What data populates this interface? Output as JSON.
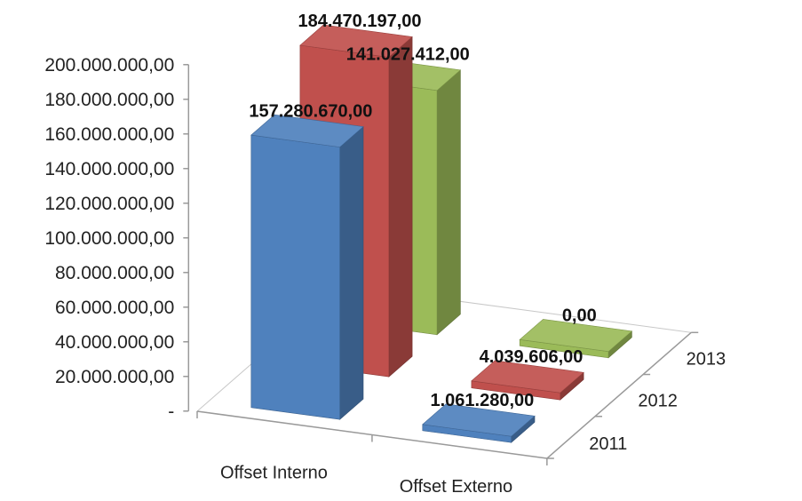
{
  "chart_data": {
    "type": "bar",
    "subtype": "3d-clustered-column",
    "categories": [
      "Offset Interno",
      "Offset Externo"
    ],
    "series": [
      {
        "name": "2011",
        "color": "#4F81BD",
        "values": [
          157280670.0,
          1061280.0
        ],
        "labels": [
          "157.280.670,00",
          "1.061.280,00"
        ]
      },
      {
        "name": "2012",
        "color": "#C0504D",
        "values": [
          184470197.0,
          4039606.0
        ],
        "labels": [
          "184.470.197,00",
          "4.039.606,00"
        ]
      },
      {
        "name": "2013",
        "color": "#9BBB59",
        "values": [
          141027412.0,
          0.0
        ],
        "labels": [
          "141.027.412,00",
          "0,00"
        ]
      }
    ],
    "ylim": [
      0,
      200000000
    ],
    "yticks": [
      {
        "value": 0,
        "label": "-"
      },
      {
        "value": 20000000,
        "label": "20.000.000,00"
      },
      {
        "value": 40000000,
        "label": "40.000.000,00"
      },
      {
        "value": 60000000,
        "label": "60.000.000,00"
      },
      {
        "value": 80000000,
        "label": "80.000.000,00"
      },
      {
        "value": 100000000,
        "label": "100.000.000,00"
      },
      {
        "value": 120000000,
        "label": "120.000.000,00"
      },
      {
        "value": 140000000,
        "label": "140.000.000,00"
      },
      {
        "value": 160000000,
        "label": "160.000.000,00"
      },
      {
        "value": 180000000,
        "label": "180.000.000,00"
      },
      {
        "value": 200000000,
        "label": "200.000.000,00"
      }
    ],
    "grid": false,
    "legend": "none",
    "title": "",
    "xlabel": "",
    "ylabel": ""
  }
}
